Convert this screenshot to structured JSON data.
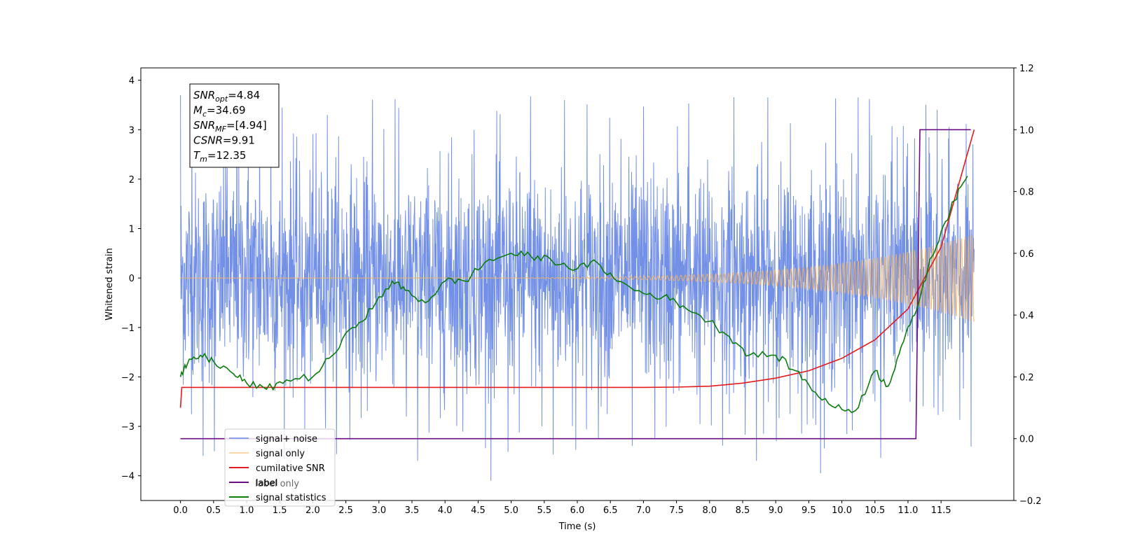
{
  "chart_data": {
    "type": "line",
    "xlabel": "Time (s)",
    "ylabel_left": "Whitened strain",
    "ylabel_right": "",
    "xlim": [
      -0.6,
      12.6
    ],
    "ylim_left": [
      -4.5,
      4.25
    ],
    "ylim_right": [
      -0.2,
      1.2
    ],
    "x_ticks": [
      0.0,
      0.5,
      1.0,
      1.5,
      2.0,
      2.5,
      3.0,
      3.5,
      4.0,
      4.5,
      5.0,
      5.5,
      6.0,
      6.5,
      7.0,
      7.5,
      8.0,
      8.5,
      9.0,
      9.5,
      10.0,
      10.5,
      11.0,
      11.5
    ],
    "x_tick_labels": [
      "0.0",
      "0.5",
      "1.0",
      "1.5",
      "2.0",
      "2.5",
      "3.0",
      "3.5",
      "4.0",
      "4.5",
      "5.0",
      "5.5",
      "6.0",
      "6.5",
      "7.0",
      "7.5",
      "8.0",
      "8.5",
      "9.0",
      "9.5",
      "10.0",
      "10.5",
      "11.0",
      "11.5"
    ],
    "y_ticks_left": [
      4,
      3,
      2,
      1,
      0,
      -1,
      -2,
      -3,
      -4
    ],
    "y_tick_labels_left": [
      "4",
      "3",
      "2",
      "1",
      "0",
      "−1",
      "−2",
      "−3",
      "−4"
    ],
    "y_ticks_right": [
      1.2,
      1.0,
      0.8,
      0.6,
      0.4,
      0.2,
      0.0,
      -0.2
    ],
    "y_tick_labels_right": [
      "1.2",
      "1.0",
      "0.8",
      "0.6",
      "0.4",
      "0.2",
      "0.0",
      "−0.2"
    ],
    "grid": false,
    "legend_position": "lower-left",
    "series": [
      {
        "name": "signal+ noise",
        "axis": "left",
        "color": "#6b8ae6",
        "description_values": {
          "x_range": [
            0.0,
            12.0
          ],
          "typical_range": [
            -2.3,
            2.3
          ],
          "peak_max": 3.85,
          "peak_min": -4.1
        }
      },
      {
        "name": "signal only",
        "axis": "left",
        "color": "#f5b35a",
        "description_values": {
          "x_range": [
            0.0,
            12.0
          ],
          "amplitude_start": 0.0,
          "amplitude_end": 0.9
        }
      },
      {
        "name": "cumilative SNR",
        "axis": "right",
        "color": "#e41a1c",
        "x": [
          0.0,
          0.02,
          1.0,
          2.0,
          3.0,
          4.0,
          5.0,
          6.0,
          7.0,
          7.5,
          8.0,
          8.5,
          9.0,
          9.5,
          10.0,
          10.5,
          11.0,
          11.5,
          12.0
        ],
        "y": [
          0.1,
          0.166,
          0.166,
          0.166,
          0.166,
          0.166,
          0.166,
          0.166,
          0.166,
          0.167,
          0.17,
          0.18,
          0.196,
          0.22,
          0.26,
          0.32,
          0.42,
          0.62,
          1.0
        ]
      },
      {
        "name": "label",
        "axis": "right",
        "color": "#6a0d83",
        "x": [
          0.0,
          11.12,
          11.18,
          11.2,
          11.95
        ],
        "y": [
          0.0,
          0.0,
          1.0,
          1.0,
          1.0
        ]
      },
      {
        "name": "signal statistics",
        "axis": "right",
        "color": "#0a7d0a",
        "x": [
          0.0,
          0.1,
          0.3,
          0.5,
          0.8,
          1.0,
          1.3,
          1.6,
          2.0,
          2.3,
          2.6,
          2.9,
          3.2,
          3.4,
          3.7,
          4.0,
          4.3,
          4.6,
          5.0,
          5.3,
          5.6,
          6.0,
          6.3,
          6.6,
          7.0,
          7.3,
          7.6,
          8.0,
          8.3,
          8.6,
          9.0,
          9.3,
          9.6,
          9.9,
          10.2,
          10.5,
          10.7,
          10.9,
          11.1,
          11.3,
          11.5,
          11.7,
          11.9
        ],
        "y": [
          0.2,
          0.24,
          0.27,
          0.25,
          0.21,
          0.18,
          0.16,
          0.19,
          0.2,
          0.27,
          0.36,
          0.42,
          0.51,
          0.48,
          0.44,
          0.51,
          0.51,
          0.57,
          0.6,
          0.59,
          0.58,
          0.55,
          0.57,
          0.51,
          0.47,
          0.46,
          0.43,
          0.38,
          0.33,
          0.27,
          0.27,
          0.22,
          0.15,
          0.1,
          0.09,
          0.22,
          0.17,
          0.3,
          0.4,
          0.55,
          0.67,
          0.77,
          0.85
        ]
      }
    ],
    "annotation_lines": [
      {
        "name": "SNR",
        "sub": "opt",
        "value": "=4.84"
      },
      {
        "name": "M",
        "sub": "c",
        "value": "=34.69"
      },
      {
        "name": "SNR",
        "sub": "MF",
        "value": "=[4.94]"
      },
      {
        "name": "CSNR",
        "sub": "",
        "value": "=9.91"
      },
      {
        "name": "T",
        "sub": "m",
        "value": "=12.35"
      }
    ],
    "legend_overlap_text": "label only"
  }
}
